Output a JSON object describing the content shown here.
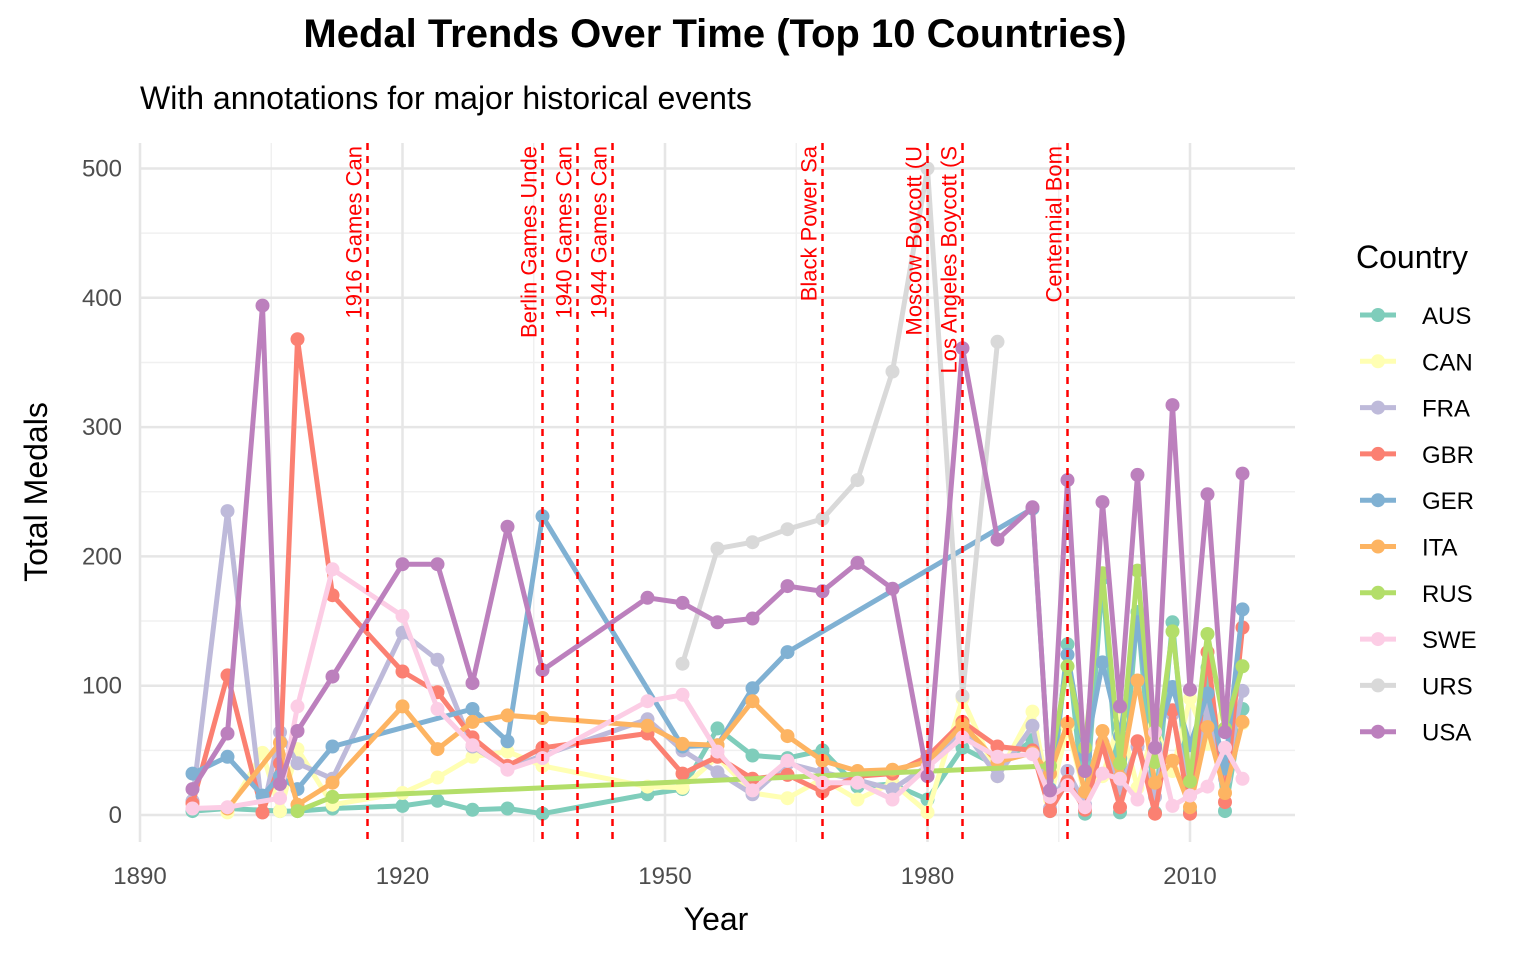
{
  "chart_data": {
    "type": "line",
    "title": "Medal Trends Over Time (Top 10 Countries)",
    "subtitle": "With annotations for major historical events",
    "xlabel": "Year",
    "ylabel": "Total Medals",
    "xlim": [
      1890,
      2016
    ],
    "ylim": [
      0,
      512
    ],
    "x_ticks": [
      1890,
      1920,
      1950,
      1980,
      2010
    ],
    "y_ticks": [
      0,
      100,
      200,
      300,
      400,
      500
    ],
    "grid": true,
    "legend_title": "Country",
    "legend_position": "right",
    "events": [
      {
        "year": 1916,
        "label": "1916 Games Can"
      },
      {
        "year": 1936,
        "label": "Berlin Games Unde"
      },
      {
        "year": 1940,
        "label": "1940 Games Can"
      },
      {
        "year": 1944,
        "label": "1944 Games Can"
      },
      {
        "year": 1968,
        "label": "Black Power Sa"
      },
      {
        "year": 1980,
        "label": "Moscow Boycott (U"
      },
      {
        "year": 1984,
        "label": "Los Angeles Boycott (S"
      },
      {
        "year": 1996,
        "label": "Centennial Bom"
      }
    ],
    "series": [
      {
        "name": "AUS",
        "color": "#7fcdbb",
        "points": [
          [
            1896,
            3
          ],
          [
            1900,
            5
          ],
          [
            1906,
            3
          ],
          [
            1908,
            3
          ],
          [
            1912,
            5
          ],
          [
            1920,
            7
          ],
          [
            1924,
            11
          ],
          [
            1928,
            4
          ],
          [
            1932,
            5
          ],
          [
            1936,
            1
          ],
          [
            1948,
            16
          ],
          [
            1952,
            20
          ],
          [
            1956,
            67
          ],
          [
            1960,
            46
          ],
          [
            1964,
            44
          ],
          [
            1968,
            50
          ],
          [
            1972,
            22
          ],
          [
            1976,
            24
          ],
          [
            1980,
            12
          ],
          [
            1984,
            52
          ],
          [
            1988,
            38
          ],
          [
            1992,
            58
          ],
          [
            1994,
            3
          ],
          [
            1996,
            132
          ],
          [
            1998,
            1
          ],
          [
            2000,
            183
          ],
          [
            2002,
            2
          ],
          [
            2004,
            157
          ],
          [
            2006,
            2
          ],
          [
            2008,
            149
          ],
          [
            2010,
            3
          ],
          [
            2012,
            114
          ],
          [
            2014,
            3
          ],
          [
            2016,
            82
          ]
        ]
      },
      {
        "name": "CAN",
        "color": "#ffffb3",
        "points": [
          [
            1900,
            2
          ],
          [
            1904,
            48
          ],
          [
            1906,
            3
          ],
          [
            1908,
            51
          ],
          [
            1912,
            8
          ],
          [
            1920,
            17
          ],
          [
            1924,
            29
          ],
          [
            1928,
            45
          ],
          [
            1932,
            49
          ],
          [
            1936,
            38
          ],
          [
            1948,
            22
          ],
          [
            1952,
            21
          ],
          [
            1956,
            45
          ],
          [
            1960,
            17
          ],
          [
            1964,
            13
          ],
          [
            1968,
            28
          ],
          [
            1972,
            12
          ],
          [
            1976,
            25
          ],
          [
            1980,
            2
          ],
          [
            1984,
            90
          ],
          [
            1988,
            30
          ],
          [
            1992,
            80
          ],
          [
            1994,
            12
          ],
          [
            1996,
            68
          ],
          [
            1998,
            15
          ],
          [
            2000,
            30
          ],
          [
            2002,
            74
          ],
          [
            2004,
            21
          ],
          [
            2006,
            69
          ],
          [
            2008,
            34
          ],
          [
            2010,
            90
          ],
          [
            2012,
            55
          ],
          [
            2014,
            86
          ],
          [
            2016,
            71
          ]
        ]
      },
      {
        "name": "FRA",
        "color": "#bebada",
        "points": [
          [
            1896,
            11
          ],
          [
            1900,
            235
          ],
          [
            1904,
            2
          ],
          [
            1906,
            64
          ],
          [
            1908,
            40
          ],
          [
            1912,
            28
          ],
          [
            1920,
            141
          ],
          [
            1924,
            120
          ],
          [
            1928,
            53
          ],
          [
            1932,
            36
          ],
          [
            1936,
            46
          ],
          [
            1948,
            74
          ],
          [
            1952,
            50
          ],
          [
            1956,
            33
          ],
          [
            1960,
            16
          ],
          [
            1964,
            40
          ],
          [
            1968,
            33
          ],
          [
            1972,
            27
          ],
          [
            1976,
            20
          ],
          [
            1980,
            38
          ],
          [
            1984,
            67
          ],
          [
            1988,
            30
          ],
          [
            1992,
            69
          ],
          [
            1994,
            5
          ],
          [
            1996,
            34
          ],
          [
            1998,
            8
          ],
          [
            2000,
            56
          ],
          [
            2002,
            21
          ],
          [
            2004,
            53
          ],
          [
            2006,
            14
          ],
          [
            2008,
            78
          ],
          [
            2010,
            15
          ],
          [
            2012,
            82
          ],
          [
            2014,
            28
          ],
          [
            2016,
            96
          ]
        ]
      },
      {
        "name": "GBR",
        "color": "#fb8072",
        "points": [
          [
            1896,
            9
          ],
          [
            1900,
            108
          ],
          [
            1904,
            2
          ],
          [
            1906,
            40
          ],
          [
            1908,
            368
          ],
          [
            1912,
            170
          ],
          [
            1920,
            111
          ],
          [
            1924,
            95
          ],
          [
            1928,
            60
          ],
          [
            1932,
            38
          ],
          [
            1936,
            52
          ],
          [
            1948,
            63
          ],
          [
            1952,
            32
          ],
          [
            1956,
            45
          ],
          [
            1960,
            28
          ],
          [
            1964,
            31
          ],
          [
            1968,
            18
          ],
          [
            1972,
            30
          ],
          [
            1976,
            32
          ],
          [
            1980,
            45
          ],
          [
            1984,
            72
          ],
          [
            1988,
            53
          ],
          [
            1992,
            50
          ],
          [
            1994,
            3
          ],
          [
            1996,
            26
          ],
          [
            1998,
            4
          ],
          [
            2000,
            55
          ],
          [
            2002,
            6
          ],
          [
            2004,
            57
          ],
          [
            2006,
            1
          ],
          [
            2008,
            81
          ],
          [
            2010,
            1
          ],
          [
            2012,
            126
          ],
          [
            2014,
            10
          ],
          [
            2016,
            145
          ]
        ]
      },
      {
        "name": "GER",
        "color": "#80b1d3",
        "points": [
          [
            1896,
            32
          ],
          [
            1900,
            45
          ],
          [
            1904,
            15
          ],
          [
            1906,
            30
          ],
          [
            1908,
            20
          ],
          [
            1912,
            53
          ],
          [
            1928,
            82
          ],
          [
            1932,
            57
          ],
          [
            1936,
            231
          ],
          [
            1952,
            53
          ],
          [
            1956,
            54
          ],
          [
            1960,
            98
          ],
          [
            1964,
            126
          ],
          [
            1992,
            237
          ],
          [
            1994,
            20
          ],
          [
            1996,
            124
          ],
          [
            1998,
            46
          ],
          [
            2000,
            118
          ],
          [
            2002,
            61
          ],
          [
            2004,
            149
          ],
          [
            2006,
            54
          ],
          [
            2008,
            99
          ],
          [
            2010,
            54
          ],
          [
            2012,
            94
          ],
          [
            2014,
            36
          ],
          [
            2016,
            159
          ]
        ]
      },
      {
        "name": "ITA",
        "color": "#fdb462",
        "points": [
          [
            1900,
            5
          ],
          [
            1906,
            56
          ],
          [
            1908,
            8
          ],
          [
            1912,
            25
          ],
          [
            1920,
            84
          ],
          [
            1924,
            51
          ],
          [
            1928,
            72
          ],
          [
            1932,
            77
          ],
          [
            1936,
            75
          ],
          [
            1948,
            69
          ],
          [
            1952,
            55
          ],
          [
            1956,
            54
          ],
          [
            1960,
            88
          ],
          [
            1964,
            61
          ],
          [
            1968,
            42
          ],
          [
            1972,
            34
          ],
          [
            1976,
            35
          ],
          [
            1980,
            41
          ],
          [
            1984,
            70
          ],
          [
            1988,
            41
          ],
          [
            1992,
            48
          ],
          [
            1994,
            32
          ],
          [
            1996,
            71
          ],
          [
            1998,
            18
          ],
          [
            2000,
            65
          ],
          [
            2002,
            29
          ],
          [
            2004,
            104
          ],
          [
            2006,
            25
          ],
          [
            2008,
            42
          ],
          [
            2010,
            6
          ],
          [
            2012,
            68
          ],
          [
            2014,
            17
          ],
          [
            2016,
            72
          ]
        ]
      },
      {
        "name": "RUS",
        "color": "#b3de69",
        "points": [
          [
            1908,
            3
          ],
          [
            1912,
            14
          ],
          [
            1994,
            38
          ],
          [
            1996,
            115
          ],
          [
            1998,
            52
          ],
          [
            2000,
            187
          ],
          [
            2002,
            40
          ],
          [
            2004,
            189
          ],
          [
            2006,
            41
          ],
          [
            2008,
            142
          ],
          [
            2010,
            26
          ],
          [
            2012,
            140
          ],
          [
            2014,
            67
          ],
          [
            2016,
            115
          ]
        ]
      },
      {
        "name": "SWE",
        "color": "#fccde5",
        "points": [
          [
            1896,
            5
          ],
          [
            1900,
            6
          ],
          [
            1906,
            13
          ],
          [
            1908,
            84
          ],
          [
            1912,
            190
          ],
          [
            1920,
            154
          ],
          [
            1924,
            82
          ],
          [
            1928,
            54
          ],
          [
            1932,
            35
          ],
          [
            1936,
            44
          ],
          [
            1948,
            88
          ],
          [
            1952,
            93
          ],
          [
            1956,
            49
          ],
          [
            1960,
            19
          ],
          [
            1964,
            42
          ],
          [
            1968,
            25
          ],
          [
            1972,
            25
          ],
          [
            1976,
            12
          ],
          [
            1980,
            37
          ],
          [
            1984,
            60
          ],
          [
            1988,
            45
          ],
          [
            1992,
            47
          ],
          [
            1994,
            14
          ],
          [
            1996,
            23
          ],
          [
            1998,
            6
          ],
          [
            2000,
            32
          ],
          [
            2002,
            28
          ],
          [
            2004,
            12
          ],
          [
            2006,
            64
          ],
          [
            2008,
            7
          ],
          [
            2010,
            15
          ],
          [
            2012,
            22
          ],
          [
            2014,
            52
          ],
          [
            2016,
            28
          ]
        ]
      },
      {
        "name": "URS",
        "color": "#d9d9d9",
        "points": [
          [
            1952,
            117
          ],
          [
            1956,
            206
          ],
          [
            1960,
            211
          ],
          [
            1964,
            221
          ],
          [
            1968,
            229
          ],
          [
            1972,
            259
          ],
          [
            1976,
            343
          ],
          [
            1980,
            500
          ],
          [
            1984,
            92
          ],
          [
            1988,
            366
          ]
        ]
      },
      {
        "name": "USA",
        "color": "#bc80bd",
        "points": [
          [
            1896,
            20
          ],
          [
            1900,
            63
          ],
          [
            1904,
            394
          ],
          [
            1906,
            24
          ],
          [
            1908,
            65
          ],
          [
            1912,
            107
          ],
          [
            1920,
            194
          ],
          [
            1924,
            194
          ],
          [
            1928,
            102
          ],
          [
            1932,
            223
          ],
          [
            1936,
            112
          ],
          [
            1948,
            168
          ],
          [
            1952,
            164
          ],
          [
            1956,
            149
          ],
          [
            1960,
            152
          ],
          [
            1964,
            177
          ],
          [
            1968,
            173
          ],
          [
            1972,
            195
          ],
          [
            1976,
            175
          ],
          [
            1980,
            30
          ],
          [
            1984,
            361
          ],
          [
            1988,
            213
          ],
          [
            1992,
            238
          ],
          [
            1994,
            19
          ],
          [
            1996,
            259
          ],
          [
            1998,
            34
          ],
          [
            2000,
            242
          ],
          [
            2002,
            84
          ],
          [
            2004,
            263
          ],
          [
            2006,
            52
          ],
          [
            2008,
            317
          ],
          [
            2010,
            97
          ],
          [
            2012,
            248
          ],
          [
            2014,
            64
          ],
          [
            2016,
            264
          ]
        ]
      }
    ]
  }
}
